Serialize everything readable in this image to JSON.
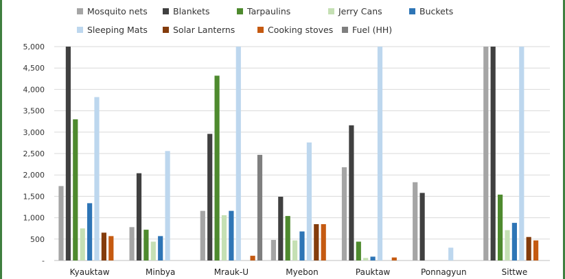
{
  "chart_data": {
    "type": "bar",
    "categories": [
      "Kyauktaw",
      "Minbya",
      "Mrauk-U",
      "Myebon",
      "Pauktaw",
      "Ponnagyun",
      "Sittwe"
    ],
    "yticks": [
      "-",
      "500",
      "1,000",
      "1,500",
      "2,000",
      "2,500",
      "3,000",
      "3,500",
      "4,000",
      "4,500",
      "5,000"
    ],
    "ylim": [
      0,
      5000
    ],
    "grid": true,
    "legend_position": "top",
    "series": [
      {
        "name": "Mosquito nets",
        "color": "#a5a5a5",
        "values": [
          1740,
          780,
          1160,
          480,
          2180,
          1830,
          5000
        ]
      },
      {
        "name": "Blankets",
        "color": "#404040",
        "values": [
          5000,
          2040,
          2960,
          1490,
          3160,
          1580,
          5000
        ]
      },
      {
        "name": "Tarpaulins",
        "color": "#4e8a2e",
        "values": [
          3300,
          720,
          4320,
          1040,
          440,
          0,
          1540
        ]
      },
      {
        "name": "Jerry Cans",
        "color": "#c5e0b4",
        "values": [
          750,
          440,
          1060,
          470,
          60,
          0,
          710
        ]
      },
      {
        "name": "Buckets",
        "color": "#2e75b6",
        "values": [
          1340,
          570,
          1160,
          680,
          90,
          0,
          880
        ]
      },
      {
        "name": "Sleeping Mats",
        "color": "#bdd7ee",
        "values": [
          3820,
          2560,
          5000,
          2760,
          5000,
          300,
          5000
        ]
      },
      {
        "name": "Solar Lanterns",
        "color": "#843c0c",
        "values": [
          650,
          0,
          0,
          850,
          0,
          0,
          550
        ]
      },
      {
        "name": "Cooking stoves",
        "color": "#c55a11",
        "values": [
          570,
          0,
          110,
          850,
          70,
          0,
          470
        ]
      },
      {
        "name": "Fuel (HH)",
        "color": "#7f7f7f",
        "values": [
          0,
          0,
          2470,
          0,
          0,
          0,
          0
        ]
      }
    ]
  }
}
